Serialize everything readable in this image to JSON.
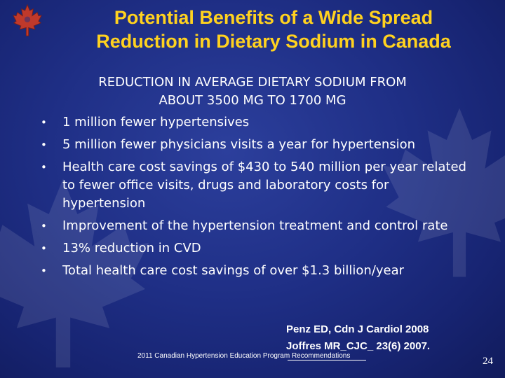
{
  "slide": {
    "title_line1": "Potential Benefits of a Wide Spread",
    "title_line2": "Reduction in Dietary Sodium in Canada",
    "subhead_line1": "REDUCTION IN AVERAGE DIETARY SODIUM FROM",
    "subhead_line2": "ABOUT 3500 MG TO 1700 MG",
    "bullet_glyph": "•",
    "bullets": [
      "1 million fewer hypertensives",
      "5 million fewer physicians visits a year for hypertension",
      "Health care cost savings of $430 to 540 million per year related to fewer office visits, drugs and laboratory costs for hypertension",
      "Improvement of the hypertension treatment and control rate",
      "13% reduction in CVD",
      "Total health care cost savings of over $1.3 billion/year"
    ],
    "reference_1": "Penz ED, Cdn J Cardiol 2008",
    "reference_2": "Joffres MR_CJC_ 23(6) 2007.",
    "footer": "2011 Canadian Hypertension Education Program Recommendations",
    "page_number": "24"
  },
  "colors": {
    "background": "#1f2f86",
    "title": "#ffd21f",
    "text": "#ffffff",
    "logo_leaf": "#c0392b"
  },
  "icons": [
    "maple-leaf-logo-icon",
    "maple-leaf-watermark-icon"
  ]
}
